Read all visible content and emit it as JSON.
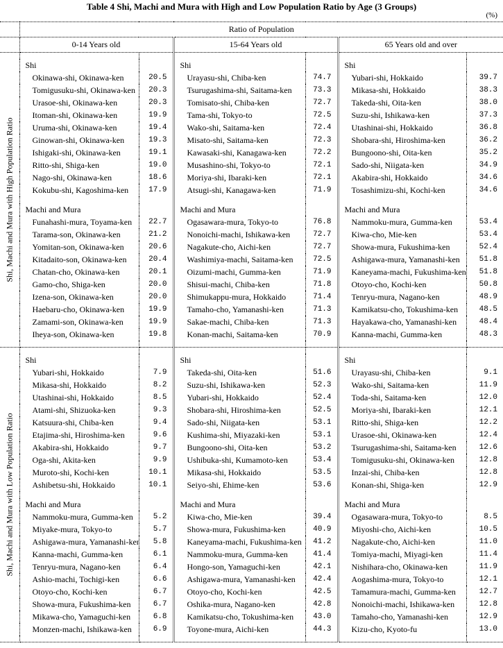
{
  "title": "Table 4  Shi, Machi and Mura with High and Low Population Ratio by Age (3 Groups)",
  "unit": "(%)",
  "header": {
    "ratio": "Ratio of Population",
    "ages": [
      "0-14 Years old",
      "15-64 Years old",
      "65 Years old and over"
    ]
  },
  "sections": [
    {
      "label": "Shi, Machi and Mura with High Population Ratio",
      "groups": [
        {
          "label": "Shi",
          "cols": [
            [
              [
                "Okinawa-shi, Okinawa-ken",
                "20.5"
              ],
              [
                "Tomigusuku-shi, Okinawa-ken",
                "20.3"
              ],
              [
                "Urasoe-shi, Okinawa-ken",
                "20.3"
              ],
              [
                "Itoman-shi, Okinawa-ken",
                "19.9"
              ],
              [
                "Uruma-shi, Okinawa-ken",
                "19.4"
              ],
              [
                "Ginowan-shi, Okinawa-ken",
                "19.3"
              ],
              [
                "Ishigaki-shi, Okinawa-ken",
                "19.1"
              ],
              [
                "Ritto-shi, Shiga-ken",
                "19.0"
              ],
              [
                "Nago-shi, Okinawa-ken",
                "18.6"
              ],
              [
                "Kokubu-shi, Kagoshima-ken",
                "17.9"
              ]
            ],
            [
              [
                "Urayasu-shi, Chiba-ken",
                "74.7"
              ],
              [
                "Tsurugashima-shi, Saitama-ken",
                "73.3"
              ],
              [
                "Tomisato-shi, Chiba-ken",
                "72.7"
              ],
              [
                "Tama-shi, Tokyo-to",
                "72.5"
              ],
              [
                "Wako-shi, Saitama-ken",
                "72.4"
              ],
              [
                "Misato-shi, Saitama-ken",
                "72.3"
              ],
              [
                "Kawasaki-shi, Kanagawa-ken",
                "72.2"
              ],
              [
                "Musashino-shi, Tokyo-to",
                "72.1"
              ],
              [
                "Moriya-shi, Ibaraki-ken",
                "72.1"
              ],
              [
                "Atsugi-shi, Kanagawa-ken",
                "71.9"
              ]
            ],
            [
              [
                "Yubari-shi, Hokkaido",
                "39.7"
              ],
              [
                "Mikasa-shi, Hokkaido",
                "38.3"
              ],
              [
                "Takeda-shi, Oita-ken",
                "38.0"
              ],
              [
                "Suzu-shi, Ishikawa-ken",
                "37.3"
              ],
              [
                "Utashinai-shi, Hokkaido",
                "36.8"
              ],
              [
                "Shobara-shi, Hiroshima-ken",
                "36.2"
              ],
              [
                "Bungoono-shi, Oita-ken",
                "35.2"
              ],
              [
                "Sado-shi, Niigata-ken",
                "34.9"
              ],
              [
                "Akabira-shi, Hokkaido",
                "34.6"
              ],
              [
                "Tosashimizu-shi, Kochi-ken",
                "34.6"
              ]
            ]
          ]
        },
        {
          "label": "Machi and Mura",
          "cols": [
            [
              [
                "Funahashi-mura, Toyama-ken",
                "22.7"
              ],
              [
                "Tarama-son, Okinawa-ken",
                "21.2"
              ],
              [
                "Yomitan-son, Okinawa-ken",
                "20.6"
              ],
              [
                "Kitadaito-son, Okinawa-ken",
                "20.4"
              ],
              [
                "Chatan-cho, Okinawa-ken",
                "20.1"
              ],
              [
                "Gamo-cho, Shiga-ken",
                "20.0"
              ],
              [
                "Izena-son, Okinawa-ken",
                "20.0"
              ],
              [
                "Haebaru-cho, Okinawa-ken",
                "19.9"
              ],
              [
                "Zamami-son, Okinawa-ken",
                "19.9"
              ],
              [
                "Iheya-son, Okinawa-ken",
                "19.8"
              ]
            ],
            [
              [
                "Ogasawara-mura, Tokyo-to",
                "76.8"
              ],
              [
                "Nonoichi-machi, Ishikawa-ken",
                "72.7"
              ],
              [
                "Nagakute-cho, Aichi-ken",
                "72.7"
              ],
              [
                "Washimiya-machi, Saitama-ken",
                "72.5"
              ],
              [
                "Oizumi-machi, Gumma-ken",
                "71.9"
              ],
              [
                "Shisui-machi, Chiba-ken",
                "71.8"
              ],
              [
                "Shimukappu-mura, Hokkaido",
                "71.4"
              ],
              [
                "Tamaho-cho, Yamanashi-ken",
                "71.3"
              ],
              [
                "Sakae-machi, Chiba-ken",
                "71.3"
              ],
              [
                "Konan-machi, Saitama-ken",
                "70.9"
              ]
            ],
            [
              [
                "Nammoku-mura, Gumma-ken",
                "53.4"
              ],
              [
                "Kiwa-cho, Mie-ken",
                "53.4"
              ],
              [
                "Showa-mura, Fukushima-ken",
                "52.4"
              ],
              [
                "Ashigawa-mura, Yamanashi-ken",
                "51.8"
              ],
              [
                "Kaneyama-machi, Fukushima-ken",
                "51.8"
              ],
              [
                "Otoyo-cho, Kochi-ken",
                "50.8"
              ],
              [
                "Tenryu-mura, Nagano-ken",
                "48.9"
              ],
              [
                "Kamikatsu-cho, Tokushima-ken",
                "48.5"
              ],
              [
                "Hayakawa-cho, Yamanashi-ken",
                "48.4"
              ],
              [
                "Kanna-machi, Gumma-ken",
                "48.3"
              ]
            ]
          ]
        }
      ]
    },
    {
      "label": "Shi, Machi and Mura with Low Population Ratio",
      "groups": [
        {
          "label": "Shi",
          "cols": [
            [
              [
                "Yubari-shi, Hokkaido",
                "7.9"
              ],
              [
                "Mikasa-shi, Hokkaido",
                "8.2"
              ],
              [
                "Utashinai-shi, Hokkaido",
                "8.5"
              ],
              [
                "Atami-shi, Shizuoka-ken",
                "9.3"
              ],
              [
                "Katsuura-shi, Chiba-ken",
                "9.4"
              ],
              [
                "Etajima-shi, Hiroshima-ken",
                "9.6"
              ],
              [
                "Akabira-shi, Hokkaido",
                "9.7"
              ],
              [
                "Oga-shi, Akita-ken",
                "9.9"
              ],
              [
                "Muroto-shi, Kochi-ken",
                "10.1"
              ],
              [
                "Ashibetsu-shi, Hokkaido",
                "10.1"
              ]
            ],
            [
              [
                "Takeda-shi, Oita-ken",
                "51.6"
              ],
              [
                "Suzu-shi, Ishikawa-ken",
                "52.3"
              ],
              [
                "Yubari-shi, Hokkaido",
                "52.4"
              ],
              [
                "Shobara-shi, Hiroshima-ken",
                "52.5"
              ],
              [
                "Sado-shi, Niigata-ken",
                "53.1"
              ],
              [
                "Kushima-shi, Miyazaki-ken",
                "53.1"
              ],
              [
                "Bungoono-shi, Oita-ken",
                "53.2"
              ],
              [
                "Ushibuka-shi, Kumamoto-ken",
                "53.4"
              ],
              [
                "Mikasa-shi, Hokkaido",
                "53.5"
              ],
              [
                "Seiyo-shi, Ehime-ken",
                "53.6"
              ]
            ],
            [
              [
                "Urayasu-shi, Chiba-ken",
                "9.1"
              ],
              [
                "Wako-shi, Saitama-ken",
                "11.9"
              ],
              [
                "Toda-shi, Saitama-ken",
                "12.0"
              ],
              [
                "Moriya-shi, Ibaraki-ken",
                "12.1"
              ],
              [
                "Ritto-shi, Shiga-ken",
                "12.2"
              ],
              [
                "Urasoe-shi, Okinawa-ken",
                "12.4"
              ],
              [
                "Tsurugashima-shi, Saitama-ken",
                "12.6"
              ],
              [
                "Tomigusuku-shi, Okinawa-ken",
                "12.8"
              ],
              [
                "Inzai-shi, Chiba-ken",
                "12.8"
              ],
              [
                "Konan-shi, Shiga-ken",
                "12.9"
              ]
            ]
          ]
        },
        {
          "label": "Machi and Mura",
          "cols": [
            [
              [
                "Nammoku-mura, Gumma-ken",
                "5.2"
              ],
              [
                "Miyake-mura, Tokyo-to",
                "5.7"
              ],
              [
                "Ashigawa-mura, Yamanashi-ken",
                "5.8"
              ],
              [
                "Kanna-machi, Gumma-ken",
                "6.1"
              ],
              [
                "Tenryu-mura, Nagano-ken",
                "6.4"
              ],
              [
                "Ashio-machi, Tochigi-ken",
                "6.6"
              ],
              [
                "Otoyo-cho, Kochi-ken",
                "6.7"
              ],
              [
                "Showa-mura, Fukushima-ken",
                "6.7"
              ],
              [
                "Mikawa-cho, Yamaguchi-ken",
                "6.8"
              ],
              [
                "Monzen-machi, Ishikawa-ken",
                "6.9"
              ]
            ],
            [
              [
                "Kiwa-cho, Mie-ken",
                "39.4"
              ],
              [
                "Showa-mura, Fukushima-ken",
                "40.9"
              ],
              [
                "Kaneyama-machi, Fukushima-ken",
                "41.2"
              ],
              [
                "Nammoku-mura, Gumma-ken",
                "41.4"
              ],
              [
                "Hongo-son, Yamaguchi-ken",
                "42.1"
              ],
              [
                "Ashigawa-mura, Yamanashi-ken",
                "42.4"
              ],
              [
                "Otoyo-cho, Kochi-ken",
                "42.5"
              ],
              [
                "Oshika-mura, Nagano-ken",
                "42.8"
              ],
              [
                "Kamikatsu-cho, Tokushima-ken",
                "43.0"
              ],
              [
                "Toyone-mura, Aichi-ken",
                "44.3"
              ]
            ],
            [
              [
                "Ogasawara-mura, Tokyo-to",
                "8.5"
              ],
              [
                "Miyoshi-cho, Aichi-ken",
                "10.5"
              ],
              [
                "Nagakute-cho, Aichi-ken",
                "11.0"
              ],
              [
                "Tomiya-machi, Miyagi-ken",
                "11.4"
              ],
              [
                "Nishihara-cho, Okinawa-ken",
                "11.9"
              ],
              [
                "Aogashima-mura, Tokyo-to",
                "12.1"
              ],
              [
                "Tamamura-machi, Gumma-ken",
                "12.7"
              ],
              [
                "Nonoichi-machi, Ishikawa-ken",
                "12.8"
              ],
              [
                "Tamaho-cho, Yamanashi-ken",
                "12.9"
              ],
              [
                "Kizu-cho, Kyoto-fu",
                "13.0"
              ]
            ]
          ]
        }
      ]
    }
  ]
}
